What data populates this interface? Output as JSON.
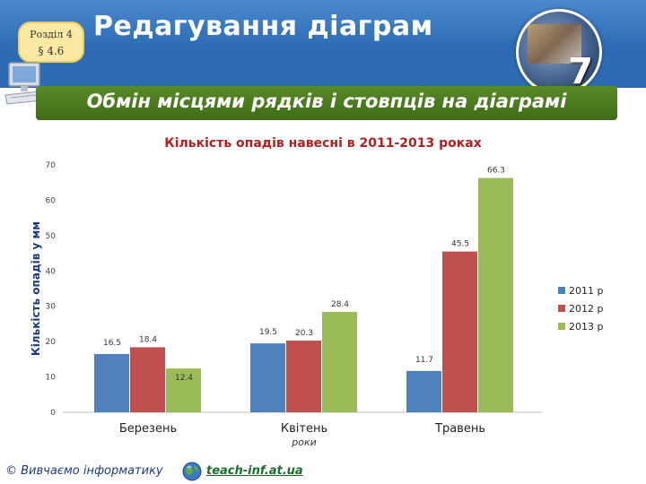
{
  "header": {
    "title": "Редагування діаграм",
    "badge_line1": "Розділ 4",
    "badge_line2": "§ 4.6",
    "logo_number": "7"
  },
  "subtitle": "Обмін місцями рядків і стовпців на діаграмі",
  "chart_data": {
    "type": "bar",
    "title": "Кількість опадів навесні в 2011-2013 роках",
    "xlabel": "роки",
    "ylabel": "Кількість опадів у мм",
    "categories": [
      "Березень",
      "Квітень",
      "Травень"
    ],
    "series": [
      {
        "name": "2011 р",
        "values": [
          16.5,
          19.5,
          11.7
        ],
        "color": "#4f81bd"
      },
      {
        "name": "2012 р",
        "values": [
          18.4,
          20.3,
          45.5
        ],
        "color": "#c0504d"
      },
      {
        "name": "2013 р",
        "values": [
          12.4,
          28.4,
          66.3
        ],
        "color": "#9bbb59"
      }
    ],
    "ylim": [
      0,
      70
    ],
    "yticks": [
      0,
      10,
      20,
      30,
      40,
      50,
      60,
      70
    ],
    "grid": false,
    "legend": "right"
  },
  "footer": {
    "copyright": "© Вивчаємо інформатику",
    "link": "teach-inf.at.ua"
  },
  "colors": {
    "header_blue": "#2d6bb4",
    "banner_green": "#4a7a1e",
    "chart_title_red": "#b02020"
  }
}
